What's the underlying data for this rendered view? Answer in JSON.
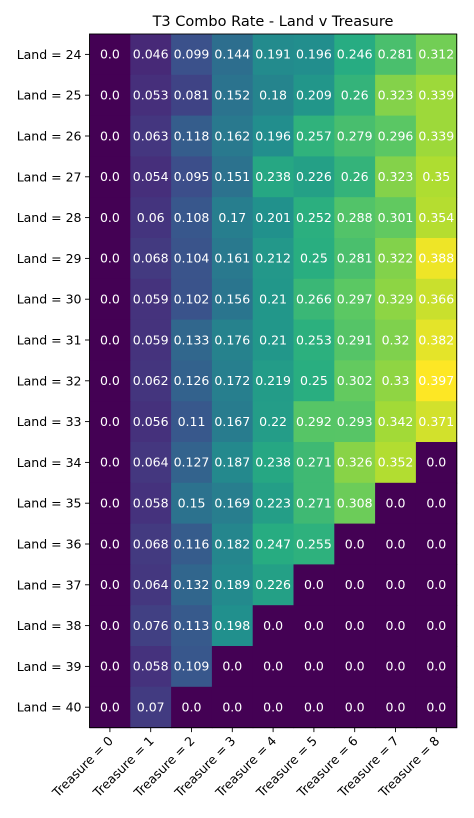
{
  "chart_data": {
    "type": "heatmap",
    "title": "T3 Combo Rate - Land v Treasure",
    "xlabel": "",
    "ylabel": "",
    "x_categories": [
      "Treasure = 0",
      "Treasure = 1",
      "Treasure = 2",
      "Treasure = 3",
      "Treasure = 4",
      "Treasure = 5",
      "Treasure = 6",
      "Treasure = 7",
      "Treasure = 8"
    ],
    "y_categories": [
      "Land = 24",
      "Land = 25",
      "Land = 26",
      "Land = 27",
      "Land = 28",
      "Land = 29",
      "Land = 30",
      "Land = 31",
      "Land = 32",
      "Land = 33",
      "Land = 34",
      "Land = 35",
      "Land = 36",
      "Land = 37",
      "Land = 38",
      "Land = 39",
      "Land = 40"
    ],
    "values": [
      [
        0.0,
        0.046,
        0.099,
        0.144,
        0.191,
        0.196,
        0.246,
        0.281,
        0.312
      ],
      [
        0.0,
        0.053,
        0.081,
        0.152,
        0.18,
        0.209,
        0.26,
        0.323,
        0.339
      ],
      [
        0.0,
        0.063,
        0.118,
        0.162,
        0.196,
        0.257,
        0.279,
        0.296,
        0.339
      ],
      [
        0.0,
        0.054,
        0.095,
        0.151,
        0.238,
        0.226,
        0.26,
        0.323,
        0.35
      ],
      [
        0.0,
        0.06,
        0.108,
        0.17,
        0.201,
        0.252,
        0.288,
        0.301,
        0.354
      ],
      [
        0.0,
        0.068,
        0.104,
        0.161,
        0.212,
        0.25,
        0.281,
        0.322,
        0.388
      ],
      [
        0.0,
        0.059,
        0.102,
        0.156,
        0.21,
        0.266,
        0.297,
        0.329,
        0.366
      ],
      [
        0.0,
        0.059,
        0.133,
        0.176,
        0.21,
        0.253,
        0.291,
        0.32,
        0.382
      ],
      [
        0.0,
        0.062,
        0.126,
        0.172,
        0.219,
        0.25,
        0.302,
        0.33,
        0.397
      ],
      [
        0.0,
        0.056,
        0.11,
        0.167,
        0.22,
        0.292,
        0.293,
        0.342,
        0.371
      ],
      [
        0.0,
        0.064,
        0.127,
        0.187,
        0.238,
        0.271,
        0.326,
        0.352,
        0.0
      ],
      [
        0.0,
        0.058,
        0.15,
        0.169,
        0.223,
        0.271,
        0.308,
        0.0,
        0.0
      ],
      [
        0.0,
        0.068,
        0.116,
        0.182,
        0.247,
        0.255,
        0.0,
        0.0,
        0.0
      ],
      [
        0.0,
        0.064,
        0.132,
        0.189,
        0.226,
        0.0,
        0.0,
        0.0,
        0.0
      ],
      [
        0.0,
        0.076,
        0.113,
        0.198,
        0.0,
        0.0,
        0.0,
        0.0,
        0.0
      ],
      [
        0.0,
        0.058,
        0.109,
        0.0,
        0.0,
        0.0,
        0.0,
        0.0,
        0.0
      ],
      [
        0.0,
        0.07,
        0.0,
        0.0,
        0.0,
        0.0,
        0.0,
        0.0,
        0.0
      ]
    ],
    "cell_labels": [
      [
        "0.0",
        "0.046",
        "0.099",
        "0.144",
        "0.191",
        "0.196",
        "0.246",
        "0.281",
        "0.312"
      ],
      [
        "0.0",
        "0.053",
        "0.081",
        "0.152",
        "0.18",
        "0.209",
        "0.26",
        "0.323",
        "0.339"
      ],
      [
        "0.0",
        "0.063",
        "0.118",
        "0.162",
        "0.196",
        "0.257",
        "0.279",
        "0.296",
        "0.339"
      ],
      [
        "0.0",
        "0.054",
        "0.095",
        "0.151",
        "0.238",
        "0.226",
        "0.26",
        "0.323",
        "0.35"
      ],
      [
        "0.0",
        "0.06",
        "0.108",
        "0.17",
        "0.201",
        "0.252",
        "0.288",
        "0.301",
        "0.354"
      ],
      [
        "0.0",
        "0.068",
        "0.104",
        "0.161",
        "0.212",
        "0.25",
        "0.281",
        "0.322",
        "0.388"
      ],
      [
        "0.0",
        "0.059",
        "0.102",
        "0.156",
        "0.21",
        "0.266",
        "0.297",
        "0.329",
        "0.366"
      ],
      [
        "0.0",
        "0.059",
        "0.133",
        "0.176",
        "0.21",
        "0.253",
        "0.291",
        "0.32",
        "0.382"
      ],
      [
        "0.0",
        "0.062",
        "0.126",
        "0.172",
        "0.219",
        "0.25",
        "0.302",
        "0.33",
        "0.397"
      ],
      [
        "0.0",
        "0.056",
        "0.11",
        "0.167",
        "0.22",
        "0.292",
        "0.293",
        "0.342",
        "0.371"
      ],
      [
        "0.0",
        "0.064",
        "0.127",
        "0.187",
        "0.238",
        "0.271",
        "0.326",
        "0.352",
        "0.0"
      ],
      [
        "0.0",
        "0.058",
        "0.15",
        "0.169",
        "0.223",
        "0.271",
        "0.308",
        "0.0",
        "0.0"
      ],
      [
        "0.0",
        "0.068",
        "0.116",
        "0.182",
        "0.247",
        "0.255",
        "0.0",
        "0.0",
        "0.0"
      ],
      [
        "0.0",
        "0.064",
        "0.132",
        "0.189",
        "0.226",
        "0.0",
        "0.0",
        "0.0",
        "0.0"
      ],
      [
        "0.0",
        "0.076",
        "0.113",
        "0.198",
        "0.0",
        "0.0",
        "0.0",
        "0.0",
        "0.0"
      ],
      [
        "0.0",
        "0.058",
        "0.109",
        "0.0",
        "0.0",
        "0.0",
        "0.0",
        "0.0",
        "0.0"
      ],
      [
        "0.0",
        "0.07",
        "0.0",
        "0.0",
        "0.0",
        "0.0",
        "0.0",
        "0.0",
        "0.0"
      ]
    ],
    "colormap": "viridis",
    "value_range": [
      0.0,
      0.397
    ],
    "colorbar": false,
    "grid": false,
    "legend": "none",
    "cell_label_color": "#ffffff"
  }
}
